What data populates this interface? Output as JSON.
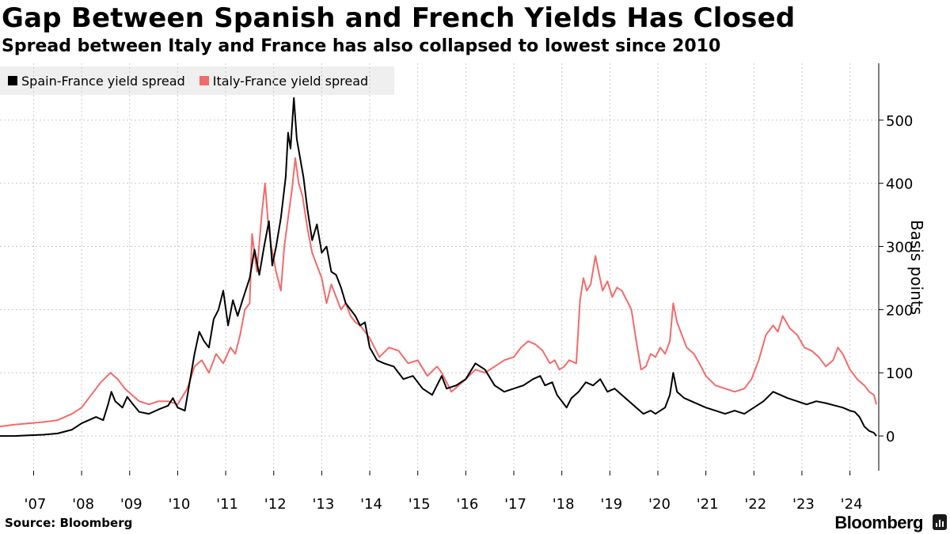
{
  "header": {
    "title": "Gap Between Spanish and French Yields Has Closed",
    "subtitle": "Spread between Italy and France has also collapsed to lowest since 2010"
  },
  "footer": {
    "source": "Source: Bloomberg",
    "brand": "Bloomberg"
  },
  "colors": {
    "spain_france": "#000000",
    "italy_france": "#f26b6b",
    "legend_bg": "#efefef",
    "gridline": "#c8c8c8"
  },
  "chart_data": {
    "type": "line",
    "title": "Gap Between Spanish and French Yields Has Closed",
    "subtitle": "Spread between Italy and France has also collapsed to lowest since 2010",
    "xlabel": "",
    "ylabel": "Basis points",
    "xlim": [
      2006.3,
      2024.6
    ],
    "ylim": [
      -55,
      590
    ],
    "x_ticks": [
      2007,
      2008,
      2009,
      2010,
      2011,
      2012,
      2013,
      2014,
      2015,
      2016,
      2017,
      2018,
      2019,
      2020,
      2021,
      2022,
      2023,
      2024
    ],
    "x_tick_labels": [
      "'07",
      "'08",
      "'09",
      "'10",
      "'11",
      "'12",
      "'13",
      "'14",
      "'15",
      "'16",
      "'17",
      "'18",
      "'19",
      "'20",
      "'21",
      "'22",
      "'23",
      "'24"
    ],
    "y_ticks": [
      0,
      100,
      200,
      300,
      400,
      500
    ],
    "y_tick_labels": [
      "0",
      "100",
      "200",
      "300",
      "400",
      "500"
    ],
    "grid": true,
    "y_axis_position": "right",
    "legend_position": "top-left",
    "series": [
      {
        "name": "Spain-France yield spread",
        "color": "#000000",
        "points": [
          [
            2006.3,
            0
          ],
          [
            2006.6,
            0
          ],
          [
            2006.9,
            1
          ],
          [
            2007.2,
            2
          ],
          [
            2007.5,
            4
          ],
          [
            2007.8,
            10
          ],
          [
            2008.0,
            20
          ],
          [
            2008.3,
            30
          ],
          [
            2008.45,
            25
          ],
          [
            2008.55,
            50
          ],
          [
            2008.62,
            70
          ],
          [
            2008.7,
            55
          ],
          [
            2008.85,
            45
          ],
          [
            2008.95,
            62
          ],
          [
            2009.05,
            52
          ],
          [
            2009.2,
            38
          ],
          [
            2009.4,
            35
          ],
          [
            2009.6,
            42
          ],
          [
            2009.8,
            48
          ],
          [
            2009.9,
            60
          ],
          [
            2010.0,
            45
          ],
          [
            2010.15,
            40
          ],
          [
            2010.25,
            85
          ],
          [
            2010.35,
            130
          ],
          [
            2010.45,
            165
          ],
          [
            2010.55,
            150
          ],
          [
            2010.65,
            140
          ],
          [
            2010.75,
            185
          ],
          [
            2010.85,
            200
          ],
          [
            2010.95,
            230
          ],
          [
            2011.05,
            175
          ],
          [
            2011.15,
            215
          ],
          [
            2011.25,
            190
          ],
          [
            2011.35,
            215
          ],
          [
            2011.5,
            250
          ],
          [
            2011.6,
            295
          ],
          [
            2011.7,
            255
          ],
          [
            2011.8,
            300
          ],
          [
            2011.9,
            340
          ],
          [
            2011.97,
            270
          ],
          [
            2012.05,
            300
          ],
          [
            2012.15,
            345
          ],
          [
            2012.25,
            410
          ],
          [
            2012.3,
            480
          ],
          [
            2012.35,
            455
          ],
          [
            2012.42,
            535
          ],
          [
            2012.48,
            470
          ],
          [
            2012.55,
            440
          ],
          [
            2012.62,
            410
          ],
          [
            2012.7,
            360
          ],
          [
            2012.8,
            310
          ],
          [
            2012.9,
            335
          ],
          [
            2013.0,
            290
          ],
          [
            2013.1,
            300
          ],
          [
            2013.2,
            260
          ],
          [
            2013.3,
            255
          ],
          [
            2013.4,
            235
          ],
          [
            2013.5,
            210
          ],
          [
            2013.6,
            200
          ],
          [
            2013.7,
            190
          ],
          [
            2013.8,
            175
          ],
          [
            2013.9,
            180
          ],
          [
            2014.0,
            140
          ],
          [
            2014.15,
            120
          ],
          [
            2014.3,
            115
          ],
          [
            2014.5,
            110
          ],
          [
            2014.7,
            90
          ],
          [
            2014.9,
            95
          ],
          [
            2015.1,
            75
          ],
          [
            2015.3,
            65
          ],
          [
            2015.5,
            95
          ],
          [
            2015.6,
            75
          ],
          [
            2015.8,
            80
          ],
          [
            2016.0,
            90
          ],
          [
            2016.2,
            115
          ],
          [
            2016.4,
            105
          ],
          [
            2016.6,
            80
          ],
          [
            2016.8,
            70
          ],
          [
            2017.0,
            75
          ],
          [
            2017.2,
            80
          ],
          [
            2017.4,
            90
          ],
          [
            2017.55,
            95
          ],
          [
            2017.65,
            80
          ],
          [
            2017.8,
            85
          ],
          [
            2017.9,
            65
          ],
          [
            2018.0,
            55
          ],
          [
            2018.1,
            45
          ],
          [
            2018.2,
            60
          ],
          [
            2018.35,
            70
          ],
          [
            2018.5,
            85
          ],
          [
            2018.65,
            80
          ],
          [
            2018.8,
            90
          ],
          [
            2018.95,
            70
          ],
          [
            2019.1,
            75
          ],
          [
            2019.25,
            65
          ],
          [
            2019.4,
            55
          ],
          [
            2019.55,
            45
          ],
          [
            2019.7,
            35
          ],
          [
            2019.85,
            40
          ],
          [
            2019.95,
            35
          ],
          [
            2020.05,
            40
          ],
          [
            2020.15,
            45
          ],
          [
            2020.25,
            65
          ],
          [
            2020.32,
            100
          ],
          [
            2020.4,
            70
          ],
          [
            2020.55,
            60
          ],
          [
            2020.7,
            55
          ],
          [
            2020.85,
            50
          ],
          [
            2021.0,
            45
          ],
          [
            2021.2,
            40
          ],
          [
            2021.4,
            35
          ],
          [
            2021.6,
            40
          ],
          [
            2021.8,
            35
          ],
          [
            2022.0,
            45
          ],
          [
            2022.2,
            55
          ],
          [
            2022.4,
            70
          ],
          [
            2022.55,
            65
          ],
          [
            2022.7,
            60
          ],
          [
            2022.9,
            55
          ],
          [
            2023.1,
            50
          ],
          [
            2023.3,
            55
          ],
          [
            2023.5,
            52
          ],
          [
            2023.7,
            48
          ],
          [
            2023.85,
            45
          ],
          [
            2024.0,
            40
          ],
          [
            2024.1,
            38
          ],
          [
            2024.2,
            30
          ],
          [
            2024.3,
            15
          ],
          [
            2024.4,
            8
          ],
          [
            2024.5,
            5
          ],
          [
            2024.55,
            0
          ]
        ]
      },
      {
        "name": "Italy-France yield spread",
        "color": "#f26b6b",
        "points": [
          [
            2006.3,
            15
          ],
          [
            2006.6,
            18
          ],
          [
            2006.9,
            20
          ],
          [
            2007.2,
            22
          ],
          [
            2007.5,
            25
          ],
          [
            2007.8,
            35
          ],
          [
            2008.0,
            45
          ],
          [
            2008.2,
            65
          ],
          [
            2008.4,
            85
          ],
          [
            2008.6,
            100
          ],
          [
            2008.75,
            90
          ],
          [
            2008.9,
            75
          ],
          [
            2009.05,
            65
          ],
          [
            2009.2,
            55
          ],
          [
            2009.4,
            50
          ],
          [
            2009.6,
            55
          ],
          [
            2009.8,
            55
          ],
          [
            2010.0,
            50
          ],
          [
            2010.2,
            75
          ],
          [
            2010.35,
            110
          ],
          [
            2010.5,
            120
          ],
          [
            2010.65,
            100
          ],
          [
            2010.8,
            130
          ],
          [
            2010.95,
            115
          ],
          [
            2011.1,
            140
          ],
          [
            2011.2,
            130
          ],
          [
            2011.3,
            160
          ],
          [
            2011.4,
            200
          ],
          [
            2011.5,
            210
          ],
          [
            2011.55,
            320
          ],
          [
            2011.65,
            260
          ],
          [
            2011.75,
            350
          ],
          [
            2011.82,
            400
          ],
          [
            2011.88,
            340
          ],
          [
            2011.95,
            300
          ],
          [
            2012.05,
            260
          ],
          [
            2012.15,
            230
          ],
          [
            2012.22,
            300
          ],
          [
            2012.3,
            345
          ],
          [
            2012.38,
            390
          ],
          [
            2012.45,
            440
          ],
          [
            2012.52,
            400
          ],
          [
            2012.6,
            380
          ],
          [
            2012.7,
            330
          ],
          [
            2012.8,
            290
          ],
          [
            2012.9,
            270
          ],
          [
            2013.0,
            250
          ],
          [
            2013.1,
            210
          ],
          [
            2013.2,
            240
          ],
          [
            2013.3,
            220
          ],
          [
            2013.4,
            200
          ],
          [
            2013.5,
            210
          ],
          [
            2013.6,
            190
          ],
          [
            2013.7,
            180
          ],
          [
            2013.8,
            175
          ],
          [
            2013.9,
            165
          ],
          [
            2014.0,
            155
          ],
          [
            2014.2,
            125
          ],
          [
            2014.4,
            140
          ],
          [
            2014.6,
            135
          ],
          [
            2014.8,
            115
          ],
          [
            2015.0,
            120
          ],
          [
            2015.2,
            95
          ],
          [
            2015.4,
            110
          ],
          [
            2015.5,
            100
          ],
          [
            2015.7,
            70
          ],
          [
            2015.85,
            80
          ],
          [
            2016.0,
            90
          ],
          [
            2016.2,
            105
          ],
          [
            2016.4,
            100
          ],
          [
            2016.6,
            110
          ],
          [
            2016.8,
            120
          ],
          [
            2017.0,
            125
          ],
          [
            2017.15,
            140
          ],
          [
            2017.3,
            150
          ],
          [
            2017.45,
            145
          ],
          [
            2017.6,
            135
          ],
          [
            2017.75,
            115
          ],
          [
            2017.85,
            120
          ],
          [
            2017.95,
            105
          ],
          [
            2018.05,
            110
          ],
          [
            2018.15,
            120
          ],
          [
            2018.3,
            115
          ],
          [
            2018.38,
            215
          ],
          [
            2018.45,
            250
          ],
          [
            2018.52,
            230
          ],
          [
            2018.6,
            240
          ],
          [
            2018.7,
            285
          ],
          [
            2018.78,
            255
          ],
          [
            2018.85,
            230
          ],
          [
            2018.95,
            245
          ],
          [
            2019.05,
            220
          ],
          [
            2019.15,
            235
          ],
          [
            2019.25,
            230
          ],
          [
            2019.35,
            215
          ],
          [
            2019.45,
            200
          ],
          [
            2019.55,
            150
          ],
          [
            2019.65,
            105
          ],
          [
            2019.75,
            110
          ],
          [
            2019.85,
            130
          ],
          [
            2019.95,
            125
          ],
          [
            2020.05,
            140
          ],
          [
            2020.15,
            130
          ],
          [
            2020.25,
            150
          ],
          [
            2020.32,
            210
          ],
          [
            2020.4,
            180
          ],
          [
            2020.5,
            160
          ],
          [
            2020.6,
            140
          ],
          [
            2020.75,
            130
          ],
          [
            2020.9,
            110
          ],
          [
            2021.0,
            95
          ],
          [
            2021.2,
            80
          ],
          [
            2021.4,
            75
          ],
          [
            2021.6,
            70
          ],
          [
            2021.8,
            75
          ],
          [
            2021.95,
            90
          ],
          [
            2022.1,
            120
          ],
          [
            2022.25,
            160
          ],
          [
            2022.4,
            175
          ],
          [
            2022.5,
            165
          ],
          [
            2022.6,
            190
          ],
          [
            2022.75,
            170
          ],
          [
            2022.9,
            160
          ],
          [
            2023.05,
            140
          ],
          [
            2023.2,
            135
          ],
          [
            2023.35,
            125
          ],
          [
            2023.5,
            110
          ],
          [
            2023.65,
            120
          ],
          [
            2023.75,
            140
          ],
          [
            2023.85,
            130
          ],
          [
            2024.0,
            105
          ],
          [
            2024.15,
            90
          ],
          [
            2024.3,
            80
          ],
          [
            2024.4,
            70
          ],
          [
            2024.5,
            65
          ],
          [
            2024.55,
            50
          ]
        ]
      }
    ]
  }
}
